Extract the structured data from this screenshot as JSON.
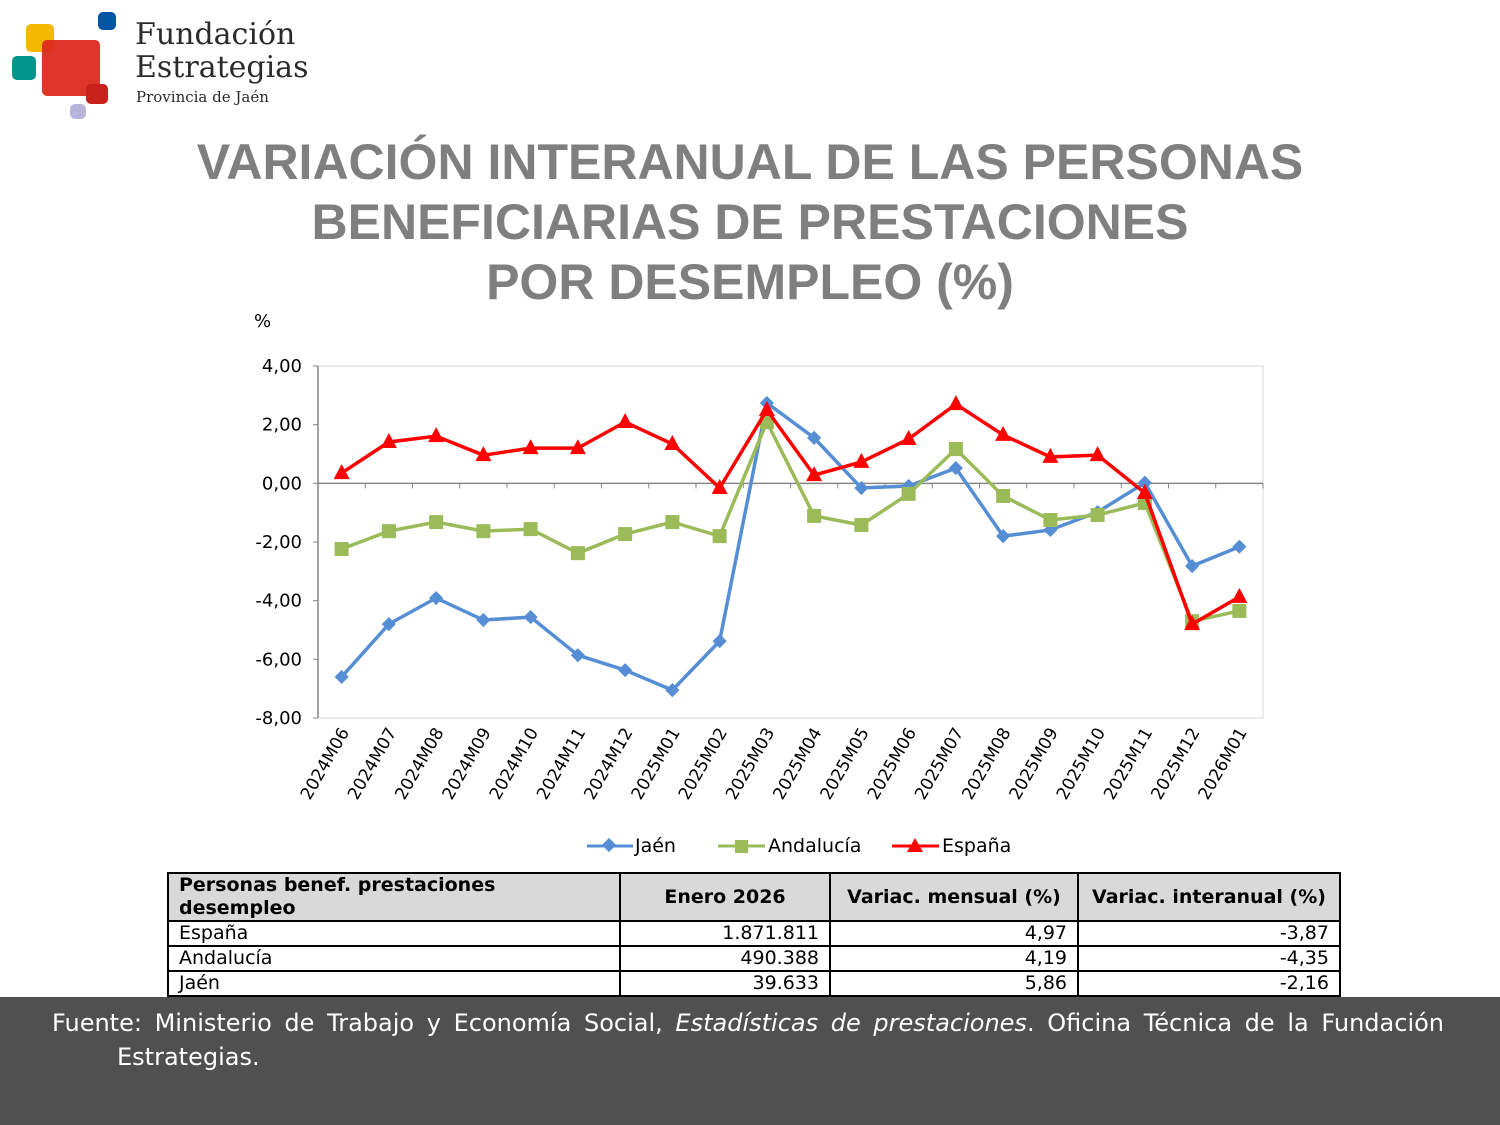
{
  "logo": {
    "line1": "Fundación",
    "line2": "Estrategias",
    "line3": "Provincia de Jaén"
  },
  "title": {
    "line1": "VARIACIÓN INTERANUAL DE LAS PERSONAS",
    "line2": "BENEFICIARIAS DE PRESTACIONES",
    "line3": "POR DESEMPLEO (%)"
  },
  "chart_data": {
    "type": "line",
    "ylabel": "%",
    "ylim": [
      -8,
      4
    ],
    "yticks": [
      "4,00",
      "2,00",
      "0,00",
      "-2,00",
      "-4,00",
      "-6,00",
      "-8,00"
    ],
    "ytick_values": [
      4,
      2,
      0,
      -2,
      -4,
      -6,
      -8
    ],
    "legend_position": "bottom",
    "grid": false,
    "categories": [
      "2024M06",
      "2024M07",
      "2024M08",
      "2024M09",
      "2024M10",
      "2024M11",
      "2024M12",
      "2025M01",
      "2025M02",
      "2025M03",
      "2025M04",
      "2025M05",
      "2025M06",
      "2025M07",
      "2025M08",
      "2025M09",
      "2025M10",
      "2025M11",
      "2025M12",
      "2026M01"
    ],
    "series": [
      {
        "name": "Jaén",
        "color": "#558ed5",
        "marker": "diamond",
        "values": [
          -6.6,
          -4.8,
          -3.91,
          -4.66,
          -4.56,
          -5.86,
          -6.37,
          -7.05,
          -5.38,
          2.74,
          1.55,
          -0.16,
          -0.09,
          0.52,
          -1.8,
          -1.59,
          -0.98,
          0.02,
          -2.82,
          -2.16
        ]
      },
      {
        "name": "Andalucía",
        "color": "#9bbb59",
        "marker": "square",
        "values": [
          -2.24,
          -1.63,
          -1.32,
          -1.63,
          -1.56,
          -2.38,
          -1.73,
          -1.32,
          -1.8,
          2.09,
          -1.11,
          -1.42,
          -0.36,
          1.17,
          -0.43,
          -1.25,
          -1.08,
          -0.67,
          -4.7,
          -4.35
        ]
      },
      {
        "name": "España",
        "color": "#ff0000",
        "marker": "triangle",
        "values": [
          0.35,
          1.41,
          1.61,
          0.96,
          1.2,
          1.2,
          2.09,
          1.34,
          -0.16,
          2.5,
          0.28,
          0.73,
          1.51,
          2.7,
          1.65,
          0.9,
          0.96,
          -0.33,
          -4.8,
          -3.87
        ]
      }
    ]
  },
  "table": {
    "headers": [
      "Personas benef. prestaciones desempleo",
      "Enero 2026",
      "Variac. mensual (%)",
      "Variac. interanual (%)"
    ],
    "rows": [
      [
        "España",
        "1.871.811",
        "4,97",
        "-3,87"
      ],
      [
        "Andalucía",
        "490.388",
        "4,19",
        "-4,35"
      ],
      [
        "Jaén",
        "39.633",
        "5,86",
        "-2,16"
      ]
    ]
  },
  "footer": {
    "prefix": "Fuente: Ministerio de Trabajo y Economía Social, ",
    "italic": "Estadísticas de prestaciones",
    "suffix": ". Oficina Técnica de la Fundación",
    "line2": "Estrategias."
  }
}
